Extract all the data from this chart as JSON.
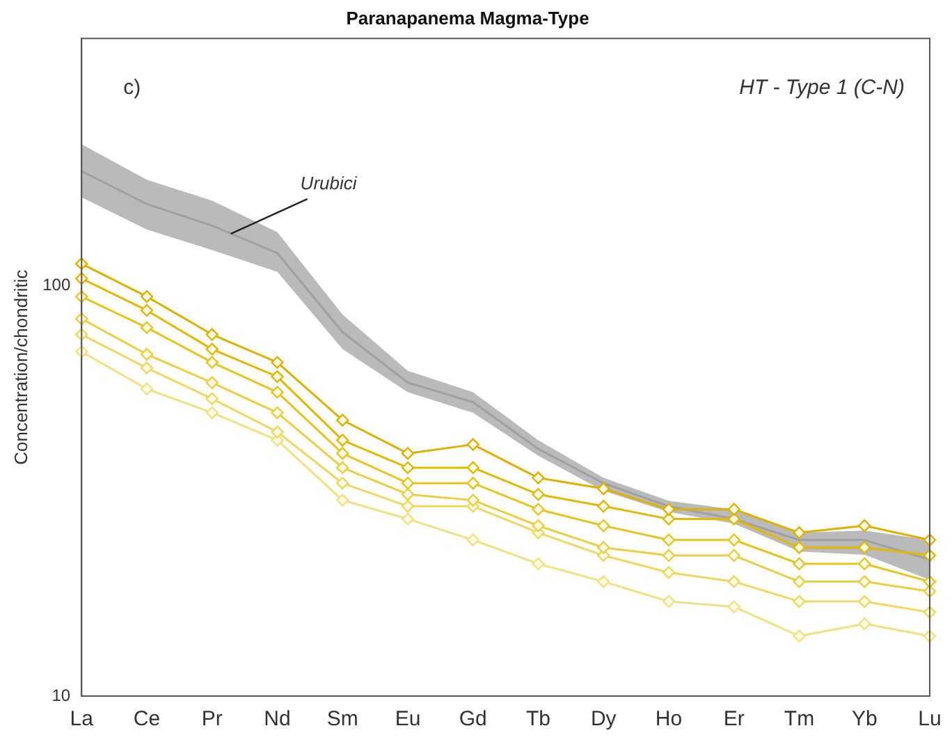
{
  "chart_data": {
    "type": "line",
    "title": "Paranapanema Magma-Type",
    "ylabel": "Concentration/chondritic",
    "annotations": [
      "c)",
      "HT - Type 1 (C-N)"
    ],
    "categories": [
      "La",
      "Ce",
      "Pr",
      "Nd",
      "Sm",
      "Eu",
      "Gd",
      "Tb",
      "Dy",
      "Ho",
      "Er",
      "Tm",
      "Yb",
      "Lu"
    ],
    "series": [
      {
        "name": "Urubici",
        "type": "line",
        "marker": "none",
        "color": "#a0a0a0",
        "values": [
          190,
          158,
          140,
          120,
          77,
          58,
          52,
          40,
          33,
          29,
          27,
          24,
          24,
          21.5
        ],
        "lower": [
          164,
          137,
          122,
          108,
          70,
          55,
          49,
          38.5,
          31.6,
          28.1,
          26.3,
          22.5,
          22.1,
          19.2
        ],
        "upper": [
          221,
          181,
          161,
          135,
          85,
          62,
          55,
          42,
          34,
          29.9,
          28.5,
          25,
          25.3,
          24
        ]
      },
      {
        "color": "#e0b000",
        "values": [
          113,
          94,
          76,
          65,
          47,
          39,
          41,
          34,
          32,
          28.5,
          28.5,
          25,
          26,
          24
        ]
      },
      {
        "color": "#e3b800",
        "values": [
          104,
          87,
          70,
          60,
          42,
          36,
          36,
          31,
          29,
          27,
          27,
          23,
          23,
          22
        ]
      },
      {
        "color": "#e8c420",
        "values": [
          94,
          79,
          65,
          55,
          39,
          33,
          33,
          28.5,
          26,
          24,
          24,
          21,
          21,
          19
        ]
      },
      {
        "color": "#ecce40",
        "values": [
          83,
          68,
          58,
          49,
          36,
          31,
          30,
          26,
          23,
          22,
          22,
          19,
          19,
          18
        ]
      },
      {
        "color": "#f0d860",
        "values": [
          76,
          63,
          53,
          44,
          33,
          29,
          29,
          25,
          22,
          20,
          19,
          17,
          17,
          16
        ]
      },
      {
        "color": "#f3e080",
        "values": [
          69,
          56,
          49,
          42,
          30,
          27,
          24,
          21,
          19,
          17,
          16.5,
          14,
          15,
          14
        ]
      }
    ],
    "log": "y",
    "ylim": [
      10,
      400
    ],
    "yticks": [
      10,
      100
    ],
    "grid": false,
    "legend": false,
    "marker": "diamond",
    "line_style": "solid"
  }
}
